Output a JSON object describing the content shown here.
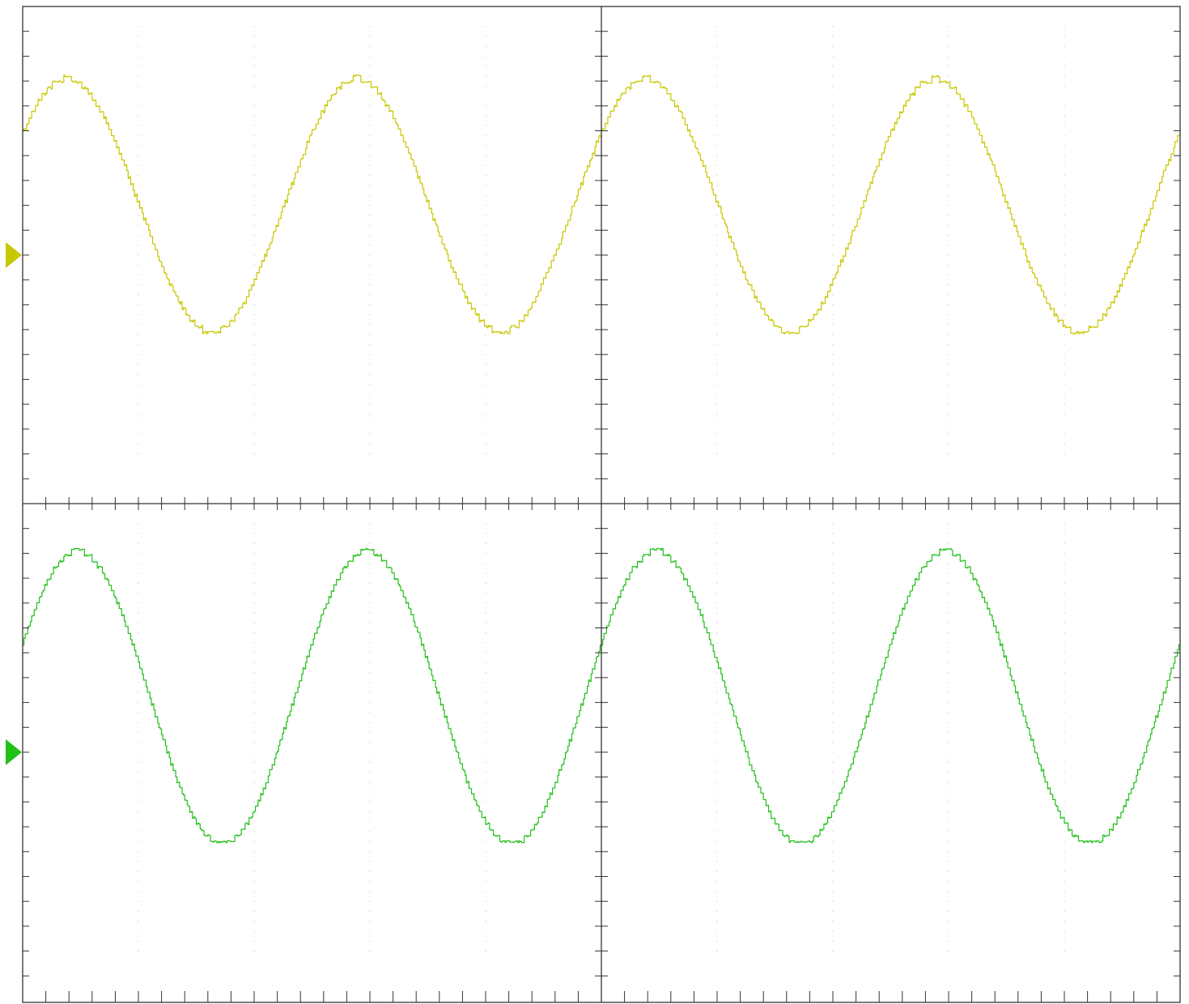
{
  "colors": {
    "background": "#ffffff",
    "frame": "#333333",
    "grid_dots": "#cfcfcf",
    "channel_1": "#c8c800",
    "channel_2": "#22c01a"
  },
  "chart_data": {
    "type": "line",
    "title": "",
    "xlabel": "",
    "ylabel": "",
    "grid": "dotted",
    "legend": "none",
    "x_divisions": 10,
    "y_divisions_per_pane": 10,
    "x_range": [
      0,
      10
    ],
    "y_range": [
      -5,
      5
    ],
    "periods_displayed": 4,
    "panes": [
      {
        "id": "top",
        "channel": "channel_1",
        "marker_level": 0,
        "amplitude": 2.55,
        "offset": 1.0,
        "phase_deg": 35,
        "quantization_step": 0.12,
        "noise": 0.05
      },
      {
        "id": "bottom",
        "channel": "channel_2",
        "marker_level": 0,
        "amplitude": 2.95,
        "offset": 1.1,
        "phase_deg": 22,
        "quantization_step": 0.12,
        "noise": 0.04
      }
    ]
  }
}
